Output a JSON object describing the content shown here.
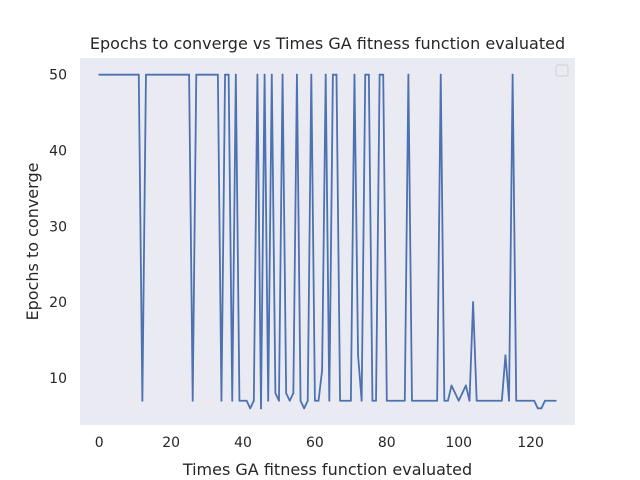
{
  "chart_data": {
    "type": "line",
    "title": "Epochs to converge vs Times GA fitness function evaluated",
    "xlabel": "Times GA fitness function evaluated",
    "ylabel": "Epochs to converge",
    "xlim": [
      -5.35,
      132.35
    ],
    "ylim": [
      3.8,
      52.2
    ],
    "xticks": [
      0,
      20,
      40,
      60,
      80,
      100,
      120
    ],
    "yticks": [
      10,
      20,
      30,
      40,
      50
    ],
    "grid": false,
    "legend": {
      "placement": "upper right",
      "entries": []
    },
    "colors": {
      "line": "#4c72b0",
      "plot_background": "#eaeaf2",
      "text": "#262626"
    },
    "series": [
      {
        "x": [
          0,
          1,
          2,
          3,
          4,
          5,
          6,
          7,
          8,
          9,
          10,
          11,
          12,
          13,
          14,
          15,
          16,
          17,
          18,
          19,
          20,
          21,
          22,
          23,
          24,
          25,
          26,
          27,
          28,
          29,
          30,
          31,
          32,
          33,
          34,
          35,
          36,
          37,
          38,
          39,
          40,
          41,
          42,
          43,
          44,
          45,
          46,
          47,
          48,
          49,
          50,
          51,
          52,
          53,
          54,
          55,
          56,
          57,
          58,
          59,
          60,
          61,
          62,
          63,
          64,
          65,
          66,
          67,
          68,
          69,
          70,
          71,
          72,
          73,
          74,
          75,
          76,
          77,
          78,
          79,
          80,
          81,
          82,
          83,
          84,
          85,
          86,
          87,
          88,
          89,
          90,
          91,
          92,
          93,
          94,
          95,
          96,
          97,
          98,
          99,
          100,
          101,
          102,
          103,
          104,
          105,
          106,
          107,
          108,
          109,
          110,
          111,
          112,
          113,
          114,
          115,
          116,
          117,
          118,
          119,
          120,
          121,
          122,
          123,
          124,
          125,
          126,
          127
        ],
        "values": [
          50,
          50,
          50,
          50,
          50,
          50,
          50,
          50,
          50,
          50,
          50,
          50,
          7,
          50,
          50,
          50,
          50,
          50,
          50,
          50,
          50,
          50,
          50,
          50,
          50,
          50,
          7,
          50,
          50,
          50,
          50,
          50,
          50,
          50,
          7,
          50,
          50,
          7,
          50,
          7,
          7,
          7,
          6,
          7,
          50,
          6,
          50,
          7,
          50,
          8,
          7,
          50,
          8,
          7,
          8,
          50,
          7,
          6,
          7,
          50,
          7,
          7,
          11,
          50,
          7,
          50,
          50,
          7,
          7,
          7,
          7,
          50,
          13,
          7,
          50,
          50,
          7,
          7,
          50,
          50,
          7,
          7,
          7,
          7,
          7,
          7,
          50,
          7,
          7,
          7,
          7,
          7,
          7,
          7,
          7,
          50,
          7,
          7,
          9,
          8,
          7,
          8,
          9,
          7,
          20,
          7,
          7,
          7,
          7,
          7,
          7,
          7,
          7,
          13,
          7,
          50,
          7,
          7,
          7,
          7,
          7,
          7,
          6,
          6,
          7,
          7,
          7,
          7
        ]
      }
    ]
  }
}
